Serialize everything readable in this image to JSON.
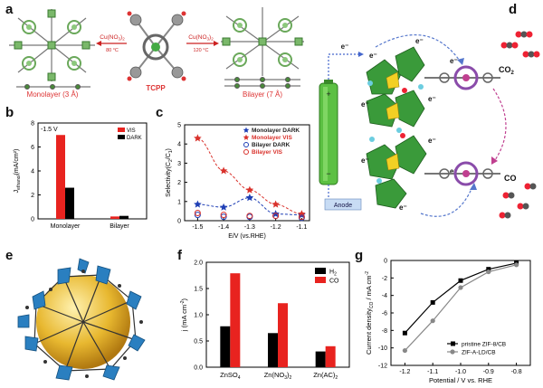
{
  "panel_letters": [
    "a",
    "b",
    "c",
    "d",
    "e",
    "f",
    "g"
  ],
  "panel_a": {
    "arrow_left_reagent": "Cu(NO",
    "arrow_left_sub": "3",
    "arrow_left_after": ")",
    "arrow_left_sub2": "2",
    "arrow_left_temp": "80 °C",
    "arrow_right_reagent": "Cu(NO",
    "arrow_right_sub": "3",
    "arrow_right_after": ")",
    "arrow_right_sub2": "2",
    "arrow_right_temp": "120 °C",
    "left_caption": "Monolayer (3 Å)",
    "center_caption": "TCPP",
    "right_caption": "Bilayer (7 Å)"
  },
  "panel_d": {
    "electron": "e⁻",
    "anode": "Anode",
    "co2": "CO",
    "co2_sub": "2",
    "co": "CO"
  },
  "chart_data": [
    {
      "id": "b",
      "type": "bar",
      "annotation": "-1.5 V",
      "ylabel": "J",
      "ylabel_sub": "ethanol",
      "ylabel_unit": "(mA/cm²)",
      "categories": [
        "Monolayer",
        "Bilayer"
      ],
      "series": [
        {
          "name": "VIS",
          "color": "#e8231f",
          "values": [
            7.0,
            0.2
          ]
        },
        {
          "name": "DARK",
          "color": "#000000",
          "values": [
            2.6,
            0.25
          ]
        }
      ],
      "ylim": [
        0,
        8
      ],
      "yticks": [
        0,
        2,
        4,
        6,
        8
      ],
      "legend": "top-right"
    },
    {
      "id": "c",
      "type": "scatter",
      "ylabel": "Selectivity(C",
      "ylabel_sub1": "2",
      "ylabel_mid": "/C",
      "ylabel_sub2": "1",
      "ylabel_end": ")",
      "xlabel": "E/V (vs.RHE)",
      "x_ticks": [
        "-1.5",
        "-1.4",
        "-1.3",
        "-1.2",
        "-1.1"
      ],
      "y_ticks": [
        "0",
        "1",
        "2",
        "3",
        "4",
        "5"
      ],
      "xlim": [
        -1.55,
        -1.07
      ],
      "ylim": [
        0,
        5
      ],
      "series": [
        {
          "name": "Monolayer DARK",
          "marker": "star",
          "color": "#1f3fb5",
          "fill": true,
          "x": [
            -1.5,
            -1.4,
            -1.3,
            -1.2,
            -1.1
          ],
          "y": [
            0.85,
            0.7,
            1.2,
            0.35,
            0.3
          ]
        },
        {
          "name": "Monolayer VIS",
          "marker": "star",
          "color": "#d9312b",
          "fill": true,
          "x": [
            -1.5,
            -1.4,
            -1.3,
            -1.2,
            -1.1
          ],
          "y": [
            4.3,
            2.6,
            1.6,
            0.85,
            0.35
          ]
        },
        {
          "name": "Bilayer DARK",
          "marker": "circle",
          "color": "#1f3fb5",
          "fill": false,
          "x": [
            -1.5,
            -1.4,
            -1.3,
            -1.2,
            -1.1
          ],
          "y": [
            0.3,
            0.2,
            0.2,
            0.25,
            0.15
          ]
        },
        {
          "name": "Bilayer VIS",
          "marker": "circle",
          "color": "#d9312b",
          "fill": false,
          "x": [
            -1.5,
            -1.4,
            -1.3,
            -1.2,
            -1.1
          ],
          "y": [
            0.4,
            0.3,
            0.25,
            0.25,
            0.2
          ]
        }
      ],
      "legend": "top-right"
    },
    {
      "id": "f",
      "type": "bar",
      "ylabel": "j (mA cm",
      "ylabel_sup": "-2",
      "ylabel_end": ")",
      "categories": [
        {
          "base": "ZnSO",
          "sub": "4",
          "tail": ""
        },
        {
          "base": "Zn(NO",
          "sub": "3",
          "tail": ")",
          "sub2": "2"
        },
        {
          "base": "Zn(AC)",
          "sub": "2",
          "tail": ""
        }
      ],
      "series": [
        {
          "name": "H",
          "name_sub": "2",
          "color": "#000000",
          "values": [
            0.78,
            0.65,
            0.3
          ]
        },
        {
          "name": "CO",
          "name_sub": "",
          "color": "#e8231f",
          "values": [
            1.79,
            1.22,
            0.4
          ]
        }
      ],
      "ylim": [
        0,
        2.0
      ],
      "yticks": [
        "0.0",
        "0.5",
        "1.0",
        "1.5",
        "2.0"
      ],
      "legend": "top-right"
    },
    {
      "id": "g",
      "type": "line",
      "ylabel": "Current density",
      "ylabel_sub": "CO",
      "ylabel_unit": " / mA cm",
      "ylabel_sup": "-2",
      "xlabel": "Potential / V vs. RHE",
      "x_ticks": [
        "-1.2",
        "-1.1",
        "-1.0",
        "-0.9",
        "-0.8"
      ],
      "y_ticks": [
        "0",
        "-2",
        "-4",
        "-6",
        "-8",
        "-10",
        "-12"
      ],
      "xlim": [
        -1.25,
        -0.75
      ],
      "ylim": [
        -12,
        0
      ],
      "series": [
        {
          "name": "pristine ZIF-8/CB",
          "color": "#000000",
          "marker": "square",
          "x": [
            -1.2,
            -1.1,
            -1.0,
            -0.9,
            -0.8
          ],
          "y": [
            -8.3,
            -4.8,
            -2.3,
            -1.0,
            -0.3
          ]
        },
        {
          "name": "ZIF-A-LD/CB",
          "color": "#888888",
          "marker": "circle",
          "x": [
            -1.2,
            -1.1,
            -1.0,
            -0.9,
            -0.8
          ],
          "y": [
            -10.3,
            -6.9,
            -3.1,
            -1.3,
            -0.5
          ]
        }
      ],
      "legend": "lower-right"
    }
  ],
  "colors": {
    "mof_green": "#3a9a3a",
    "accent_red": "#d33",
    "battery_green": "#5cc043",
    "sphere_gold": "#e8b830",
    "octa_blue": "#2a7fc0"
  }
}
